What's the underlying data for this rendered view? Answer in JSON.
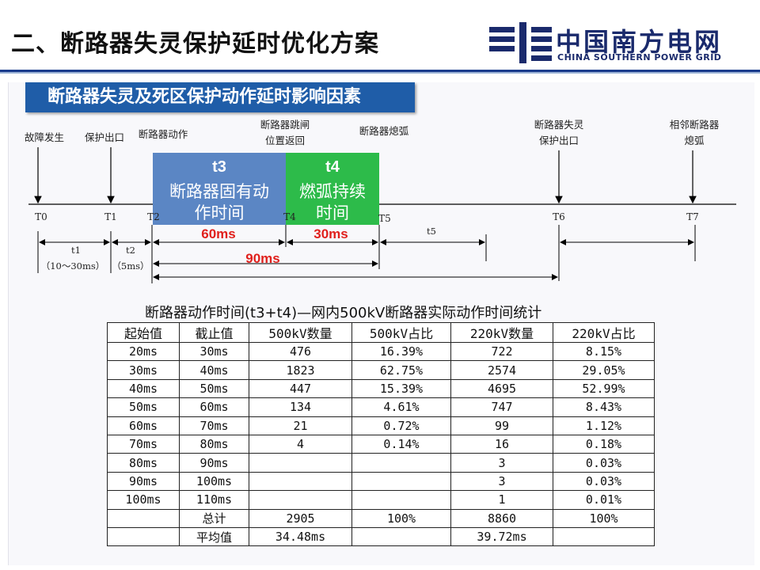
{
  "title": "二、断路器失灵保护延时优化方案",
  "logo": {
    "cn": "中国南方电网",
    "en": "CHINA SOUTHERN POWER GRID",
    "icon": "csg-grid-logo-icon"
  },
  "banner": "断路器失灵及死区保护动作延时影响因素",
  "timeline": {
    "events": [
      "故障发生",
      "保护出口",
      "断路器动作",
      "断路器跳闸",
      "位置返回",
      "断路器熄弧",
      "断路器失灵",
      "保护出口",
      "相邻断路器",
      "熄弧"
    ],
    "ticks": [
      "T0",
      "T1",
      "T2",
      "T4",
      "T5",
      "T6",
      "T7"
    ],
    "intervals": [
      "t1",
      "（10～30ms）",
      "t2",
      "（5ms）",
      "t5"
    ],
    "boxes": [
      {
        "label": "t3",
        "text1": "断路器固有动",
        "text2": "作时间",
        "color": "#5b86c4"
      },
      {
        "label": "t4",
        "text1": "燃弧持续",
        "text2": "时间",
        "color": "#2dbb4a"
      }
    ],
    "durations": [
      "60ms",
      "30ms",
      "90ms"
    ]
  },
  "table": {
    "title": "断路器动作时间(t3+t4)—网内500kV断路器实际动作时间统计",
    "headers": [
      "起始值",
      "截止值",
      "500kV数量",
      "500kV占比",
      "220kV数量",
      "220kV占比"
    ],
    "rows": [
      [
        "20ms",
        "30ms",
        "476",
        "16.39%",
        "722",
        "8.15%"
      ],
      [
        "30ms",
        "40ms",
        "1823",
        "62.75%",
        "2574",
        "29.05%"
      ],
      [
        "40ms",
        "50ms",
        "447",
        "15.39%",
        "4695",
        "52.99%"
      ],
      [
        "50ms",
        "60ms",
        "134",
        "4.61%",
        "747",
        "8.43%"
      ],
      [
        "60ms",
        "70ms",
        "21",
        "0.72%",
        "99",
        "1.12%"
      ],
      [
        "70ms",
        "80ms",
        "4",
        "0.14%",
        "16",
        "0.18%"
      ],
      [
        "80ms",
        "90ms",
        "",
        "",
        "3",
        "0.03%"
      ],
      [
        "90ms",
        "100ms",
        "",
        "",
        "3",
        "0.03%"
      ],
      [
        "100ms",
        "110ms",
        "",
        "",
        "1",
        "0.01%"
      ]
    ],
    "total": {
      "label": "总计",
      "n500": "2905",
      "p500": "100%",
      "n220": "8860",
      "p220": "100%"
    },
    "average": {
      "label": "平均值",
      "v500": "34.48ms",
      "v220": "39.72ms"
    }
  }
}
